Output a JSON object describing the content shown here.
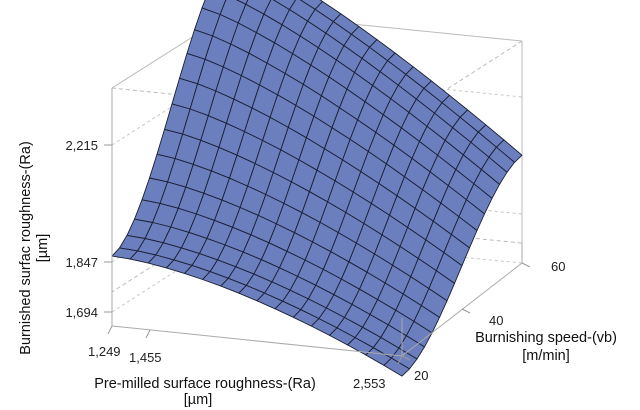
{
  "chart_data": {
    "type": "surface",
    "x": {
      "label": "Pre-milled surface roughness-(Ra)",
      "unit": "[µm]",
      "tick_labels": [
        "1,249",
        "1,455",
        "2,553"
      ],
      "range": [
        1.249,
        2.553
      ]
    },
    "y": {
      "label": "Burnishing speed-(vb)",
      "unit": "[m/min]",
      "tick_labels": [
        "20",
        "40",
        "60"
      ],
      "range": [
        20,
        60
      ]
    },
    "z": {
      "label": "Burnished surfac roughness-(Ra)",
      "unit": "[µm]",
      "tick_labels": [
        "1,694",
        "1,847",
        "2,215"
      ],
      "range": [
        1.694,
        2.215
      ]
    },
    "surface_color": "#6b7fbf",
    "grid": true,
    "corners": {
      "x_low_y_high": 2.31,
      "x_high_y_high": 1.93,
      "x_low_y_low": 1.847,
      "x_high_y_low": 1.65
    }
  }
}
